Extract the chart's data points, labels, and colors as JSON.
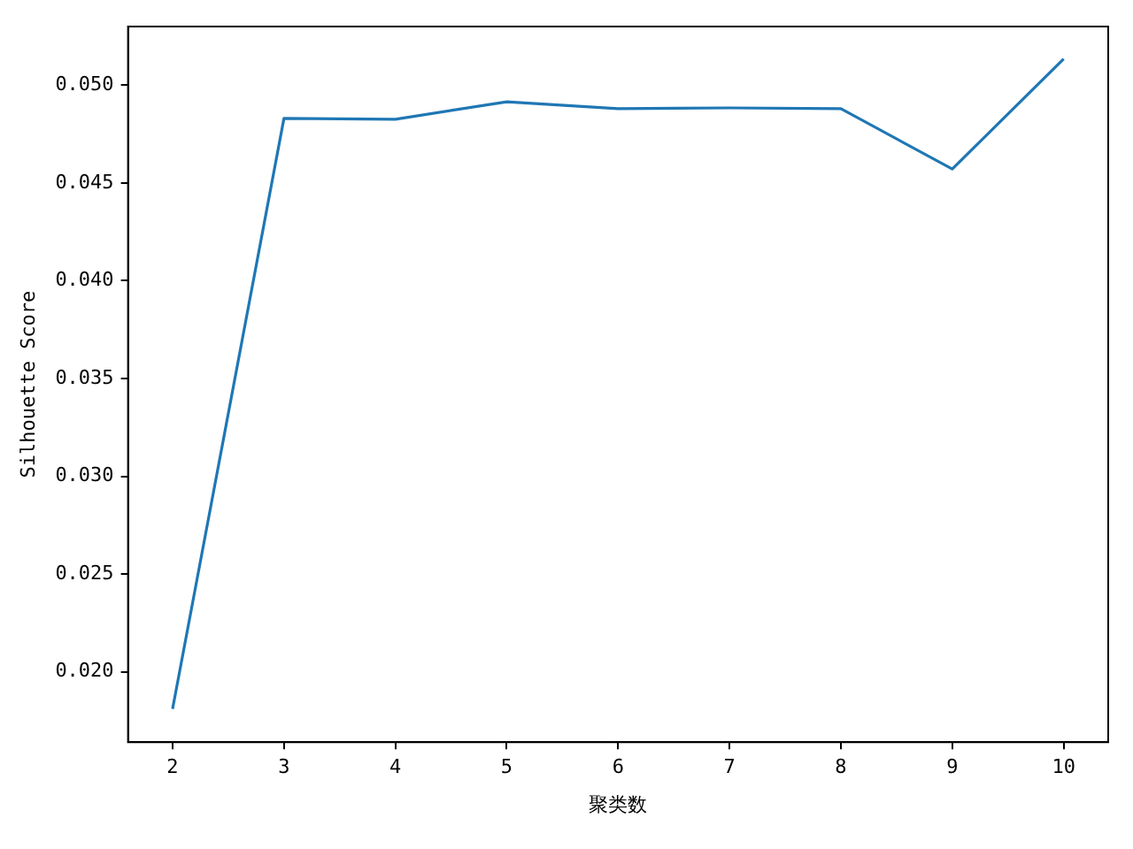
{
  "chart_data": {
    "type": "line",
    "xlabel": "聚类数",
    "ylabel": "Silhouette Score",
    "x": [
      2,
      3,
      4,
      5,
      6,
      7,
      8,
      9,
      10
    ],
    "series": [
      {
        "color": "#1f77b4",
        "values": [
          0.0181,
          0.0483,
          0.04826,
          0.04915,
          0.0488,
          0.04884,
          0.0488,
          0.04571,
          0.05134
        ]
      }
    ],
    "xlim": [
      1.6,
      10.4
    ],
    "xticks": [
      2,
      3,
      4,
      5,
      6,
      7,
      8,
      9,
      10
    ],
    "ylim": [
      0.0164,
      0.053
    ],
    "yticks": [
      {
        "value": 0.02,
        "label": "0.020"
      },
      {
        "value": 0.025,
        "label": "0.025"
      },
      {
        "value": 0.03,
        "label": "0.030"
      },
      {
        "value": 0.035,
        "label": "0.035"
      },
      {
        "value": 0.04,
        "label": "0.040"
      },
      {
        "value": 0.045,
        "label": "0.045"
      },
      {
        "value": 0.05,
        "label": "0.050"
      }
    ],
    "grid": false,
    "legend": false,
    "marker": "none",
    "line_style": "solid"
  }
}
